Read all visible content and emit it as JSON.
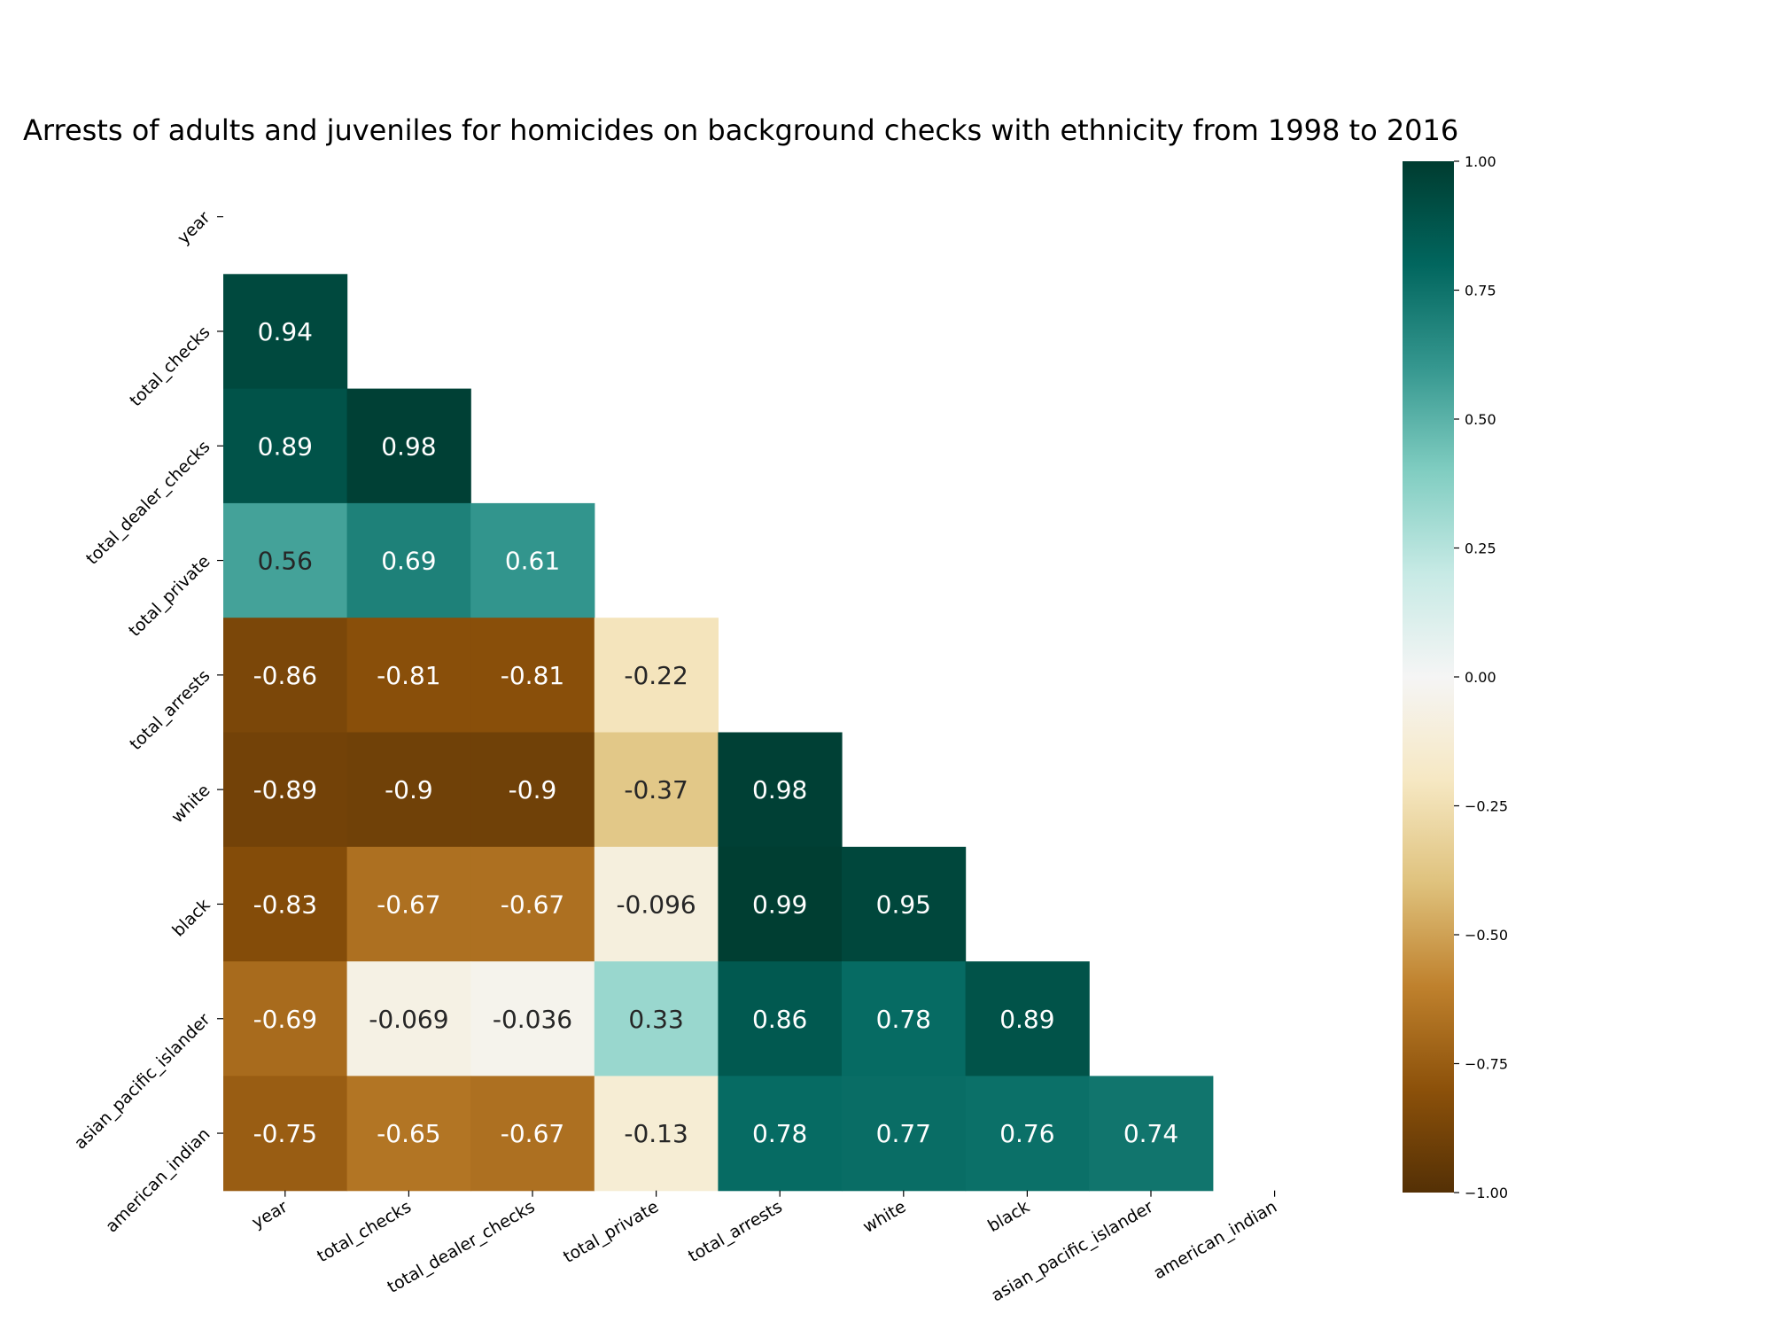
{
  "chart_data": {
    "type": "heatmap",
    "title": "Arrests of adults and juveniles for homicides on background checks with ethnicity from 1998 to 2016",
    "variables": [
      "year",
      "total_checks",
      "total_dealer_checks",
      "total_private",
      "total_arrests",
      "white",
      "black",
      "asian_pacific_islander",
      "american_indian"
    ],
    "mask": "upper-triangle-including-diagonal",
    "matrix": [
      [
        null,
        null,
        null,
        null,
        null,
        null,
        null,
        null,
        null
      ],
      [
        "0.94",
        null,
        null,
        null,
        null,
        null,
        null,
        null,
        null
      ],
      [
        "0.89",
        "0.98",
        null,
        null,
        null,
        null,
        null,
        null,
        null
      ],
      [
        "0.56",
        "0.69",
        "0.61",
        null,
        null,
        null,
        null,
        null,
        null
      ],
      [
        "-0.86",
        "-0.81",
        "-0.81",
        "-0.22",
        null,
        null,
        null,
        null,
        null
      ],
      [
        "-0.89",
        "-0.9",
        "-0.9",
        "-0.37",
        "0.98",
        null,
        null,
        null,
        null
      ],
      [
        "-0.83",
        "-0.67",
        "-0.67",
        "-0.096",
        "0.99",
        "0.95",
        null,
        null,
        null
      ],
      [
        "-0.69",
        "-0.069",
        "-0.036",
        "0.33",
        "0.86",
        "0.78",
        "0.89",
        null,
        null
      ],
      [
        "-0.75",
        "-0.65",
        "-0.67",
        "-0.13",
        "0.78",
        "0.77",
        "0.76",
        "0.74",
        null
      ]
    ],
    "colorbar": {
      "vmin": -1.0,
      "vmax": 1.0,
      "ticks": [
        "1.00",
        "0.75",
        "0.50",
        "0.25",
        "0.00",
        "−0.25",
        "−0.50",
        "−0.75",
        "−1.00"
      ],
      "colormap": "BrBG",
      "stops": [
        "#543005",
        "#8c510a",
        "#bf812d",
        "#dfc27d",
        "#f6e8c3",
        "#f5f5f5",
        "#c7eae5",
        "#80cdc1",
        "#35978f",
        "#01665e",
        "#003c30"
      ]
    },
    "grid": false
  }
}
